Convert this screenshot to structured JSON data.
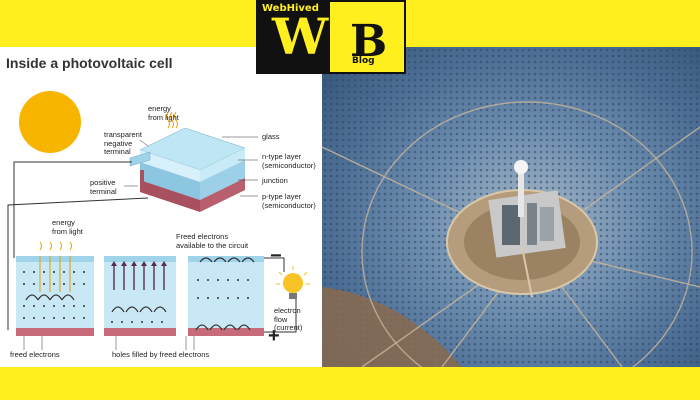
{
  "logo": {
    "brand": "WebHived",
    "letter_w": "W",
    "letter_b": "B",
    "blog_word": "Blog",
    "colors": {
      "yellow": "#ffef1f",
      "black": "#111111"
    }
  },
  "diagram": {
    "title": "Inside a photovoltaic cell",
    "labels": {
      "energy_top": "energy\nfrom light",
      "transparent_terminal": "transparent\nnegative\nterminal",
      "glass": "glass",
      "n_type": "n-type layer\n(semiconductor)",
      "junction": "junction",
      "p_type": "p-type layer\n(semiconductor)",
      "positive_terminal": "positive\nterminal",
      "energy_bottom": "energy\nfrom light",
      "freed_available": "Freed electrons\navailable to the circuit",
      "electron_flow": "electron\nflow\n(current)",
      "freed_electrons": "freed electrons",
      "holes_filled": "holes filled by freed electrons"
    },
    "signs": {
      "minus": "−",
      "plus": "+"
    },
    "icons": [
      "sun-icon",
      "light-bulb-icon"
    ],
    "colors": {
      "sun": "#f7b500",
      "n_layer": "#a9d9ee",
      "p_layer": "#c76b7b",
      "glass": "#bfe6f5"
    }
  },
  "photo": {
    "subject": "aerial view of concentrated solar power tower surrounded by heliostat mirror field",
    "colors": {
      "mirrors": "#5b7fa8",
      "desert": "#8a6a4e",
      "tower": "#c9c9c9"
    }
  }
}
